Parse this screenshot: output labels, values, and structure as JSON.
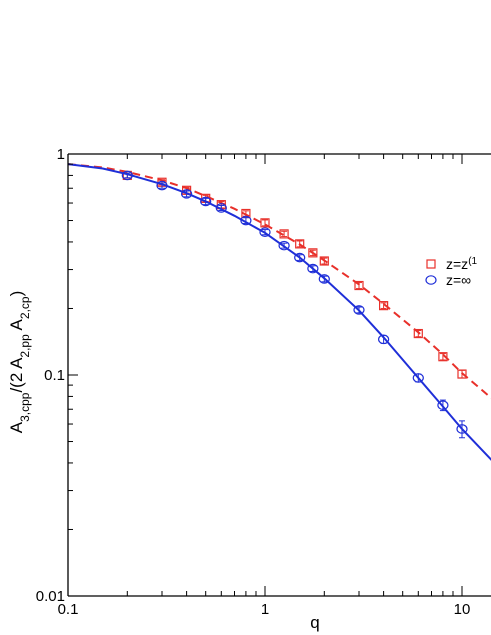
{
  "chart_data": {
    "type": "scatter",
    "x_scale": "log",
    "y_scale": "log",
    "xlim": [
      0.1,
      15
    ],
    "ylim": [
      0.01,
      1
    ],
    "xlabel": "q",
    "ylabel": "A_{3,cpp}/(2 A_{2,pp} A_{2,cp})",
    "x_ticks": [
      {
        "value": 0.1,
        "label": "0.1"
      },
      {
        "value": 1,
        "label": "1"
      },
      {
        "value": 10,
        "label": "10"
      }
    ],
    "y_ticks": [
      {
        "value": 0.01,
        "label": "0.01"
      },
      {
        "value": 0.1,
        "label": "0.1"
      },
      {
        "value": 1,
        "label": "1"
      }
    ],
    "grid": false,
    "legend_position": "right",
    "series": [
      {
        "name": "z=z(1",
        "color": "#e8302a",
        "marker": "square",
        "line_style": "dashed",
        "points": [
          {
            "x": 0.2,
            "y": 0.8,
            "err": 0.02
          },
          {
            "x": 0.3,
            "y": 0.745,
            "err": 0.02
          },
          {
            "x": 0.4,
            "y": 0.685,
            "err": 0.02
          },
          {
            "x": 0.5,
            "y": 0.63,
            "err": 0.02
          },
          {
            "x": 0.6,
            "y": 0.59,
            "err": 0.02
          },
          {
            "x": 0.8,
            "y": 0.538,
            "err": 0.015
          },
          {
            "x": 1.0,
            "y": 0.488,
            "err": 0.015
          },
          {
            "x": 1.25,
            "y": 0.435,
            "err": 0.012
          },
          {
            "x": 1.5,
            "y": 0.392,
            "err": 0.012
          },
          {
            "x": 1.75,
            "y": 0.357,
            "err": 0.01
          },
          {
            "x": 2.0,
            "y": 0.328,
            "err": 0.01
          },
          {
            "x": 3.0,
            "y": 0.254,
            "err": 0.008
          },
          {
            "x": 4.0,
            "y": 0.206,
            "err": 0.006
          },
          {
            "x": 6.0,
            "y": 0.154,
            "err": 0.005
          },
          {
            "x": 8.0,
            "y": 0.121,
            "err": 0.004
          },
          {
            "x": 10.0,
            "y": 0.101,
            "err": 0.004
          }
        ],
        "curve": [
          {
            "x": 0.1,
            "y": 0.9
          },
          {
            "x": 0.15,
            "y": 0.87
          },
          {
            "x": 0.2,
            "y": 0.83
          },
          {
            "x": 0.3,
            "y": 0.76
          },
          {
            "x": 0.4,
            "y": 0.7
          },
          {
            "x": 0.5,
            "y": 0.645
          },
          {
            "x": 0.7,
            "y": 0.565
          },
          {
            "x": 1.0,
            "y": 0.48
          },
          {
            "x": 1.5,
            "y": 0.39
          },
          {
            "x": 2.0,
            "y": 0.33
          },
          {
            "x": 3.0,
            "y": 0.257
          },
          {
            "x": 4.0,
            "y": 0.21
          },
          {
            "x": 6.0,
            "y": 0.156
          },
          {
            "x": 8.0,
            "y": 0.124
          },
          {
            "x": 10.0,
            "y": 0.102
          },
          {
            "x": 15.0,
            "y": 0.075
          }
        ]
      },
      {
        "name": "z=∞",
        "color": "#1f2fd8",
        "marker": "circle",
        "line_style": "solid",
        "points": [
          {
            "x": 0.2,
            "y": 0.8,
            "err": 0.02
          },
          {
            "x": 0.3,
            "y": 0.72,
            "err": 0.02
          },
          {
            "x": 0.4,
            "y": 0.66,
            "err": 0.02
          },
          {
            "x": 0.5,
            "y": 0.61,
            "err": 0.02
          },
          {
            "x": 0.6,
            "y": 0.57,
            "err": 0.015
          },
          {
            "x": 0.8,
            "y": 0.5,
            "err": 0.015
          },
          {
            "x": 1.0,
            "y": 0.443,
            "err": 0.012
          },
          {
            "x": 1.25,
            "y": 0.385,
            "err": 0.01
          },
          {
            "x": 1.5,
            "y": 0.34,
            "err": 0.01
          },
          {
            "x": 1.75,
            "y": 0.303,
            "err": 0.009
          },
          {
            "x": 2.0,
            "y": 0.272,
            "err": 0.008
          },
          {
            "x": 3.0,
            "y": 0.197,
            "err": 0.006
          },
          {
            "x": 4.0,
            "y": 0.145,
            "err": 0.006
          },
          {
            "x": 6.0,
            "y": 0.097,
            "err": 0.004
          },
          {
            "x": 8.0,
            "y": 0.073,
            "err": 0.004
          },
          {
            "x": 10.0,
            "y": 0.057,
            "err": 0.005
          }
        ],
        "curve": [
          {
            "x": 0.1,
            "y": 0.9
          },
          {
            "x": 0.15,
            "y": 0.86
          },
          {
            "x": 0.2,
            "y": 0.81
          },
          {
            "x": 0.3,
            "y": 0.73
          },
          {
            "x": 0.4,
            "y": 0.665
          },
          {
            "x": 0.5,
            "y": 0.61
          },
          {
            "x": 0.7,
            "y": 0.525
          },
          {
            "x": 1.0,
            "y": 0.44
          },
          {
            "x": 1.5,
            "y": 0.34
          },
          {
            "x": 2.0,
            "y": 0.274
          },
          {
            "x": 3.0,
            "y": 0.196
          },
          {
            "x": 4.0,
            "y": 0.148
          },
          {
            "x": 6.0,
            "y": 0.097
          },
          {
            "x": 8.0,
            "y": 0.072
          },
          {
            "x": 10.0,
            "y": 0.057
          },
          {
            "x": 15.0,
            "y": 0.039
          }
        ]
      }
    ]
  }
}
